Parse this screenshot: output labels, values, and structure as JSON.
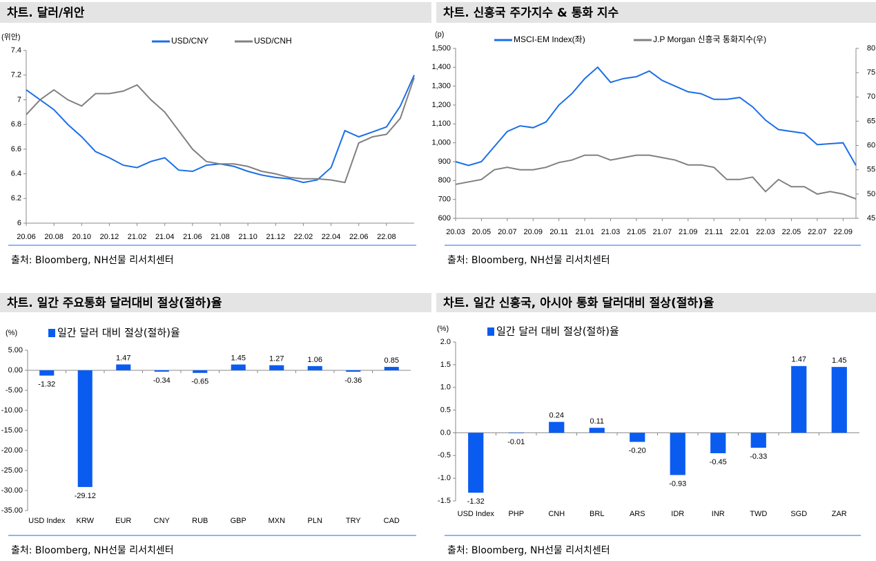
{
  "chart_data": [
    {
      "type": "line",
      "title": "차트. 달러/위안",
      "y_unit": "(위안)",
      "source": "출처: Bloomberg, NH선물 리서치센터",
      "categories": [
        "20.06",
        null,
        "20.08",
        null,
        "20.10",
        null,
        "20.12",
        null,
        "21.02",
        null,
        "21.04",
        null,
        "21.06",
        null,
        "21.08",
        null,
        "21.10",
        null,
        "21.12",
        null,
        "22.02",
        null,
        "22.04",
        null,
        "22.06",
        null,
        "22.08",
        null,
        null
      ],
      "series": [
        {
          "name": "USD/CNY",
          "color": "#1a6ee8",
          "values": [
            7.08,
            7.0,
            6.92,
            6.8,
            6.7,
            6.58,
            6.53,
            6.47,
            6.45,
            6.5,
            6.53,
            6.43,
            6.42,
            6.47,
            6.48,
            6.46,
            6.42,
            6.39,
            6.37,
            6.36,
            6.33,
            6.35,
            6.45,
            6.75,
            6.7,
            6.74,
            6.78,
            6.95,
            7.2
          ]
        },
        {
          "name": "USD/CNH",
          "color": "#808080",
          "values": [
            6.88,
            7.0,
            7.08,
            7.0,
            6.95,
            7.05,
            7.05,
            7.07,
            7.12,
            7.0,
            6.9,
            6.75,
            6.6,
            6.5,
            6.48,
            6.48,
            6.46,
            6.42,
            6.4,
            6.37,
            6.36,
            6.36,
            6.35,
            6.33,
            6.65,
            6.7,
            6.72,
            6.85,
            7.18
          ]
        }
      ],
      "ylim": [
        6,
        7.4
      ],
      "yticks": [
        6,
        6.2,
        6.4,
        6.6,
        6.8,
        7,
        7.2,
        7.4
      ],
      "legend": "top"
    },
    {
      "type": "line",
      "title": "차트. 신흥국 주가지수 & 통화 지수",
      "y_unit": "(p)",
      "source": "출처: Bloomberg, NH선물 리서치센터",
      "categories": [
        "20.03",
        null,
        "20.05",
        null,
        "20.07",
        null,
        "20.09",
        null,
        "20.11",
        null,
        "21.01",
        null,
        "21.03",
        null,
        "21.05",
        null,
        "21.07",
        null,
        "21.09",
        null,
        "21.11",
        null,
        "22.01",
        null,
        "22.03",
        null,
        "22.05",
        null,
        "22.07",
        null,
        "22.09",
        null
      ],
      "series": [
        {
          "name": "MSCI-EM Index(좌)",
          "color": "#1a6ee8",
          "values": [
            900,
            880,
            900,
            980,
            1060,
            1090,
            1080,
            1110,
            1200,
            1260,
            1340,
            1400,
            1320,
            1340,
            1350,
            1380,
            1330,
            1300,
            1270,
            1260,
            1230,
            1230,
            1240,
            1190,
            1120,
            1070,
            1060,
            1050,
            990,
            995,
            1000,
            880
          ]
        },
        {
          "name": "J.P Morgan 신흥국 통화지수(우)",
          "color": "#808080",
          "axis": "y2",
          "values": [
            52,
            52.5,
            53,
            55,
            55.5,
            55,
            55,
            55.5,
            56.5,
            57,
            58,
            58,
            57,
            57.5,
            58,
            58,
            57.5,
            57,
            56,
            56,
            55.5,
            53,
            53,
            53.5,
            50.5,
            53,
            51.5,
            51.5,
            50,
            50.5,
            50,
            49
          ]
        }
      ],
      "ylim": [
        600,
        1500
      ],
      "yticks": [
        600,
        700,
        800,
        900,
        {
          "value": 1000,
          "label": "1,000"
        },
        {
          "value": 1100,
          "label": "1,100"
        },
        {
          "value": 1200,
          "label": "1,200"
        },
        {
          "value": 1300,
          "label": "1,300"
        },
        {
          "value": 1400,
          "label": "1,400"
        },
        {
          "value": 1500,
          "label": "1,500"
        }
      ],
      "y2lim": [
        45,
        80
      ],
      "y2ticks": [
        45,
        50,
        55,
        60,
        65,
        70,
        75,
        80
      ],
      "legend": "top"
    },
    {
      "type": "bar",
      "title": "차트. 일간 주요통화 달러대비 절상(절하)율",
      "y_unit": "(%)",
      "source": "출처: Bloomberg, NH선물 리서치센터",
      "categories": [
        "USD Index",
        "KRW",
        "EUR",
        "CNY",
        "RUB",
        "GBP",
        "MXN",
        "PLN",
        "TRY",
        "CAD"
      ],
      "series": [
        {
          "name": "일간 달러 대비 절상(절하)율",
          "color": "#0a5cf0",
          "values": [
            -1.32,
            -29.12,
            1.47,
            -0.34,
            -0.65,
            1.45,
            1.27,
            1.06,
            -0.36,
            0.85
          ],
          "value_labels": [
            "-1.32",
            "-29.12",
            "1.47",
            "-0.34",
            "-0.65",
            "1.45",
            "1.27",
            "1.06",
            "-0.36",
            "0.85"
          ]
        }
      ],
      "ylim": [
        -35,
        5
      ],
      "yticks": [
        {
          "value": -35,
          "label": "-35.00"
        },
        {
          "value": -30,
          "label": "-30.00"
        },
        {
          "value": -25,
          "label": "-25.00"
        },
        {
          "value": -20,
          "label": "-20.00"
        },
        {
          "value": -15,
          "label": "-15.00"
        },
        {
          "value": -10,
          "label": "-10.00"
        },
        {
          "value": -5,
          "label": "-5.00"
        },
        {
          "value": 0,
          "label": "0.00"
        },
        {
          "value": 5,
          "label": "5.00"
        }
      ],
      "legend": "top-left"
    },
    {
      "type": "bar",
      "title": "차트. 일간 신흥국, 아시아 통화 달러대비 절상(절하)율",
      "y_unit": "(%)",
      "source": "출처: Bloomberg, NH선물 리서치센터",
      "categories": [
        "USD Index",
        "PHP",
        "CNH",
        "BRL",
        "ARS",
        "IDR",
        "INR",
        "TWD",
        "SGD",
        "ZAR"
      ],
      "series": [
        {
          "name": "일간 달러 대비 절상(절하)율",
          "color": "#0a5cf0",
          "values": [
            -1.32,
            -0.01,
            0.24,
            0.11,
            -0.2,
            -0.93,
            -0.45,
            -0.33,
            1.47,
            1.45
          ],
          "value_labels": [
            "-1.32",
            "-0.01",
            "0.24",
            "0.11",
            "-0.20",
            "-0.93",
            "-0.45",
            "-0.33",
            "1.47",
            "1.45"
          ]
        }
      ],
      "ylim": [
        -1.5,
        2
      ],
      "yticks": [
        -1.5,
        {
          "value": -1,
          "label": "-1.0"
        },
        -0.5,
        {
          "value": 0,
          "label": "0.0"
        },
        0.5,
        {
          "value": 1,
          "label": "1.0"
        },
        1.5,
        {
          "value": 2,
          "label": "2.0"
        }
      ],
      "legend": "top-left"
    }
  ]
}
